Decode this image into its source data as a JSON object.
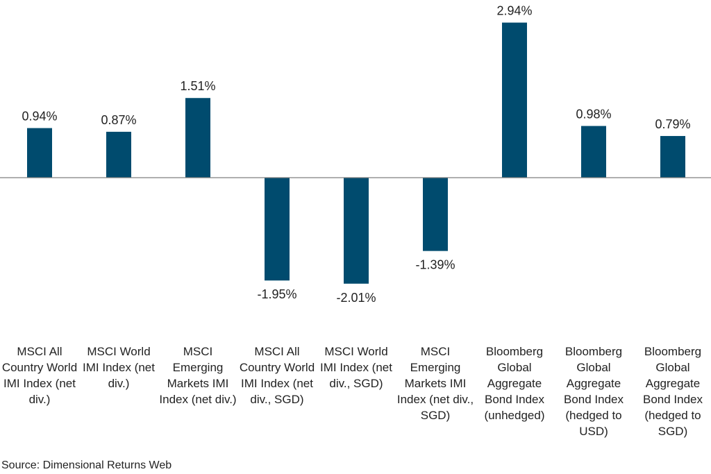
{
  "chart_data": {
    "type": "bar",
    "categories": [
      "MSCI All Country World IMI Index (net div.)",
      "MSCI World IMI Index (net div.)",
      "MSCI Emerging Markets IMI Index (net div.)",
      "MSCI All Country World IMI Index (net div., SGD)",
      "MSCI World IMI Index (net div., SGD)",
      "MSCI Emerging Markets IMI Index (net div., SGD)",
      "Bloomberg Global Aggregate Bond Index (unhedged)",
      "Bloomberg Global Aggregate Bond Index (hedged to USD)",
      "Bloomberg Global Aggregate Bond Index (hedged to SGD)"
    ],
    "values": [
      0.94,
      0.87,
      1.51,
      -1.95,
      -2.01,
      -1.39,
      2.94,
      0.98,
      0.79
    ],
    "value_labels": [
      "0.94%",
      "0.87%",
      "1.51%",
      "-1.95%",
      "-2.01%",
      "-1.39%",
      "2.94%",
      "0.98%",
      "0.79%"
    ],
    "title": "",
    "xlabel": "",
    "ylabel": "",
    "ylim": [
      -2.5,
      3.0
    ],
    "grid": false,
    "bar_color": "#004b6e",
    "baseline_color": "#7f7f7f"
  },
  "source_note": "Source: Dimensional Returns Web"
}
